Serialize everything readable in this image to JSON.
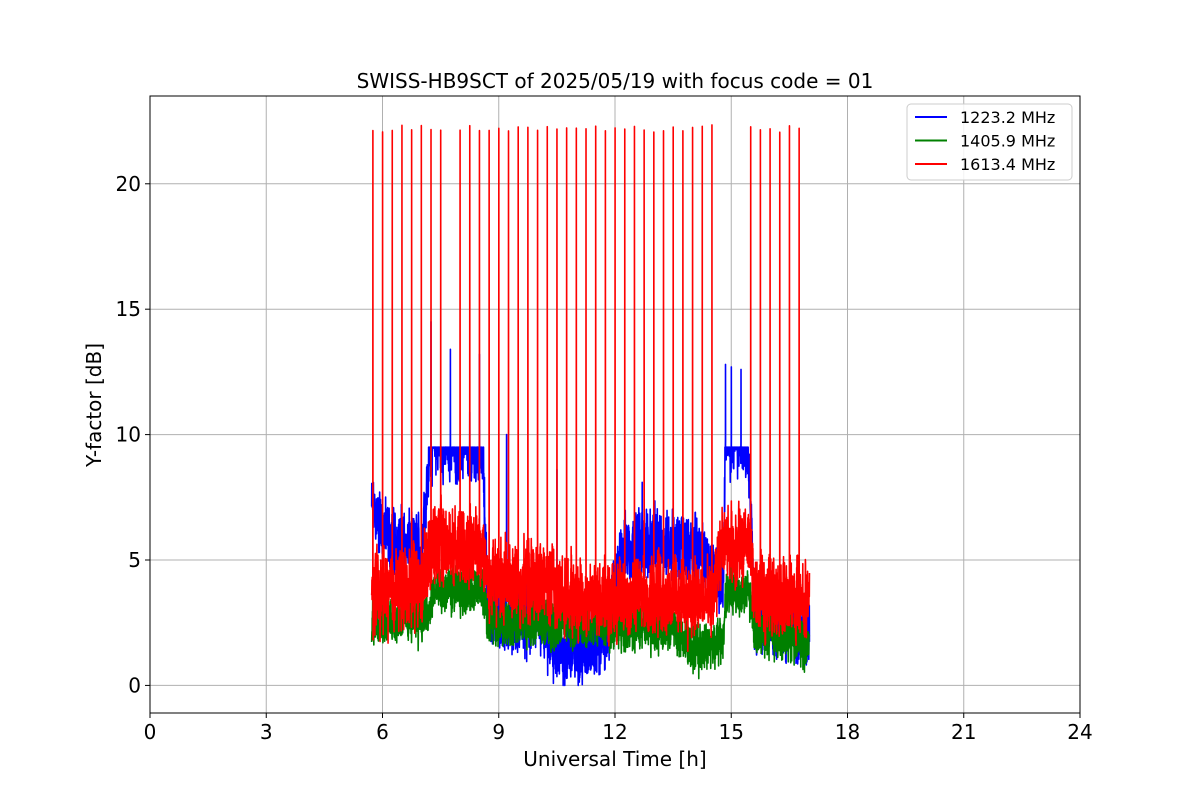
{
  "chart_data": {
    "type": "line",
    "title": "SWISS-HB9SCT of 2025/05/19 with focus code = 01",
    "xlabel": "Universal Time [h]",
    "ylabel": "Y-factor [dB]",
    "xlim": [
      0,
      24
    ],
    "ylim": [
      -1.1,
      23.5
    ],
    "xticks": [
      0,
      3,
      6,
      9,
      12,
      15,
      18,
      21,
      24
    ],
    "yticks": [
      0,
      5,
      10,
      15,
      20
    ],
    "grid": true,
    "legend_position": "top-right",
    "calibration_spikes_h": [
      5.75,
      6.0,
      6.25,
      6.5,
      6.75,
      7.0,
      7.25,
      7.5,
      8.0,
      8.25,
      8.5,
      8.75,
      9.0,
      9.25,
      9.5,
      9.75,
      10.0,
      10.25,
      10.5,
      10.75,
      11.0,
      11.25,
      11.5,
      11.75,
      12.0,
      12.25,
      12.5,
      12.75,
      13.0,
      13.25,
      13.5,
      13.75,
      14.0,
      14.25,
      14.5,
      15.5,
      15.75,
      16.0,
      16.25,
      16.5,
      16.75
    ],
    "spike_peak_db": 22.2,
    "series": [
      {
        "name": "1223.2 MHz",
        "color": "#0000ff",
        "start_h": 5.72,
        "end_h": 17.02,
        "profile": [
          [
            5.72,
            7.1
          ],
          [
            6.2,
            5.8
          ],
          [
            7.0,
            5.4
          ],
          [
            7.25,
            9.7
          ],
          [
            7.8,
            9.6
          ],
          [
            8.6,
            9.4
          ],
          [
            8.7,
            3.0
          ],
          [
            9.3,
            2.5
          ],
          [
            10.0,
            2.6
          ],
          [
            10.5,
            1.2
          ],
          [
            11.5,
            1.6
          ],
          [
            11.8,
            2.2
          ],
          [
            12.2,
            5.5
          ],
          [
            13.0,
            5.7
          ],
          [
            14.0,
            5.5
          ],
          [
            14.8,
            4.2
          ],
          [
            14.85,
            10.0
          ],
          [
            15.45,
            9.6
          ],
          [
            15.6,
            2.5
          ],
          [
            16.2,
            2.6
          ],
          [
            17.0,
            1.8
          ]
        ],
        "noise": 1.4,
        "spikes": [
          [
            7.25,
            14.5
          ],
          [
            7.75,
            13.4
          ],
          [
            8.25,
            10.9
          ],
          [
            8.5,
            13.2
          ],
          [
            9.2,
            10.0
          ],
          [
            10.5,
            8.6
          ],
          [
            12.7,
            8.1
          ],
          [
            14.85,
            12.8
          ],
          [
            15.0,
            12.7
          ],
          [
            15.25,
            12.6
          ]
        ]
      },
      {
        "name": "1405.9 MHz",
        "color": "#008000",
        "start_h": 5.72,
        "end_h": 17.02,
        "profile": [
          [
            5.72,
            2.7
          ],
          [
            7.2,
            2.7
          ],
          [
            7.3,
            3.7
          ],
          [
            8.6,
            3.9
          ],
          [
            8.7,
            2.6
          ],
          [
            12.0,
            2.4
          ],
          [
            13.5,
            2.3
          ],
          [
            14.0,
            1.5
          ],
          [
            14.8,
            1.8
          ],
          [
            14.85,
            3.7
          ],
          [
            15.45,
            3.6
          ],
          [
            15.6,
            2.3
          ],
          [
            17.0,
            1.6
          ]
        ],
        "noise": 1.0,
        "spikes": [
          [
            15.0,
            5.4
          ],
          [
            11.5,
            5.0
          ]
        ]
      },
      {
        "name": "1613.4 MHz",
        "color": "#ff0000",
        "start_h": 5.72,
        "end_h": 17.02,
        "profile": [
          [
            5.72,
            3.7
          ],
          [
            7.0,
            4.0
          ],
          [
            7.25,
            5.6
          ],
          [
            8.6,
            5.6
          ],
          [
            8.7,
            4.2
          ],
          [
            10.0,
            4.1
          ],
          [
            11.0,
            3.6
          ],
          [
            12.0,
            3.3
          ],
          [
            13.0,
            3.7
          ],
          [
            14.5,
            3.3
          ],
          [
            14.8,
            5.6
          ],
          [
            15.5,
            5.5
          ],
          [
            15.6,
            3.7
          ],
          [
            17.0,
            3.3
          ]
        ],
        "noise": 1.6,
        "spikes": []
      }
    ]
  }
}
